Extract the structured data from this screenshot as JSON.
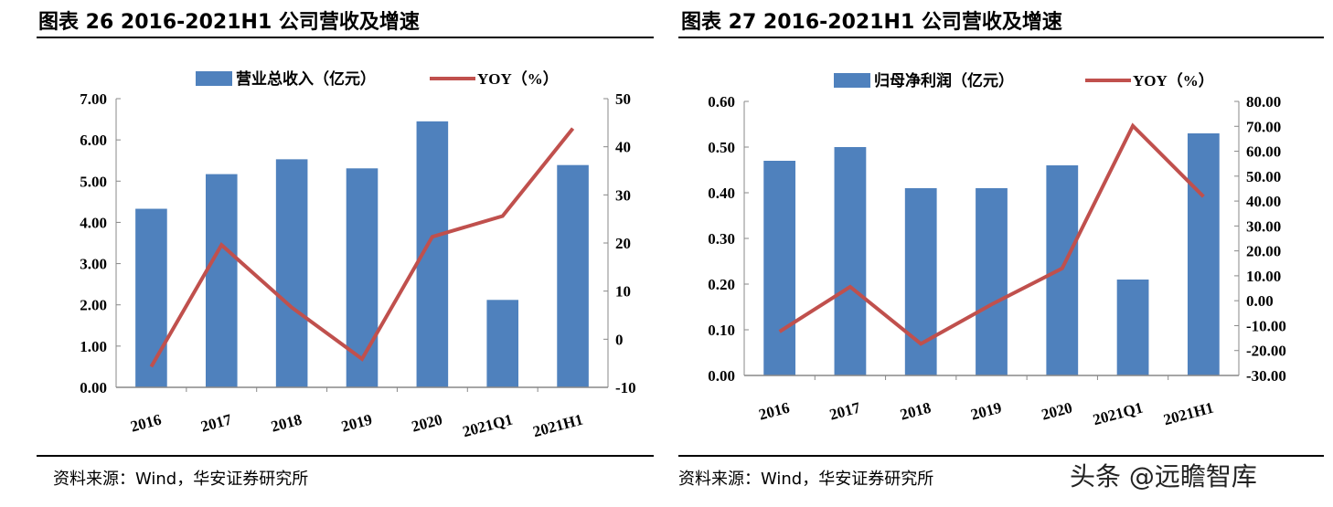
{
  "figures": [
    {
      "title": "图表 26 2016-2021H1 公司营收及增速",
      "source": "资料来源：Wind，华安证券研究所"
    },
    {
      "title": "图表 27 2016-2021H1 公司营收及增速",
      "source": "资料来源：Wind，华安证券研究所"
    }
  ],
  "watermark": "头条 @远瞻智库",
  "chart_data": [
    {
      "type": "bar+line",
      "categories": [
        "2016",
        "2017",
        "2018",
        "2019",
        "2020",
        "2021Q1",
        "2021H1"
      ],
      "series": [
        {
          "name": "营业总收入（亿元）",
          "type": "bar",
          "axis": "left",
          "color": "#4F81BD",
          "values": [
            4.33,
            5.17,
            5.53,
            5.31,
            6.45,
            2.12,
            5.39
          ]
        },
        {
          "name": "YOY（%）",
          "type": "line",
          "axis": "right",
          "color": "#C0504D",
          "values": [
            -5.7,
            19.6,
            6.6,
            -4.1,
            21.3,
            25.6,
            43.8
          ]
        }
      ],
      "left_axis": {
        "ylim": [
          0,
          7
        ],
        "ticks": [
          "0.00",
          "1.00",
          "2.00",
          "3.00",
          "4.00",
          "5.00",
          "6.00",
          "7.00"
        ]
      },
      "right_axis": {
        "ylim": [
          -10,
          50
        ],
        "ticks": [
          "-10",
          "0",
          "10",
          "20",
          "30",
          "40",
          "50"
        ]
      },
      "legend": "top",
      "grid": false
    },
    {
      "type": "bar+line",
      "categories": [
        "2016",
        "2017",
        "2018",
        "2019",
        "2020",
        "2021Q1",
        "2021H1"
      ],
      "series": [
        {
          "name": "归母净利润（亿元）",
          "type": "bar",
          "axis": "left",
          "color": "#4F81BD",
          "values": [
            0.47,
            0.5,
            0.41,
            0.41,
            0.46,
            0.21,
            0.53
          ]
        },
        {
          "name": "YOY（%）",
          "type": "line",
          "axis": "right",
          "color": "#C0504D",
          "values": [
            -12.4,
            5.6,
            -17.3,
            -1.5,
            13.0,
            70.2,
            41.8
          ]
        }
      ],
      "left_axis": {
        "ylim": [
          0,
          0.6
        ],
        "ticks": [
          "0.00",
          "0.10",
          "0.20",
          "0.30",
          "0.40",
          "0.50",
          "0.60"
        ]
      },
      "right_axis": {
        "ylim": [
          -30,
          80
        ],
        "ticks": [
          "-30.00",
          "-20.00",
          "-10.00",
          "0.00",
          "10.00",
          "20.00",
          "30.00",
          "40.00",
          "50.00",
          "60.00",
          "70.00",
          "80.00"
        ]
      },
      "legend": "top",
      "grid": false
    }
  ]
}
